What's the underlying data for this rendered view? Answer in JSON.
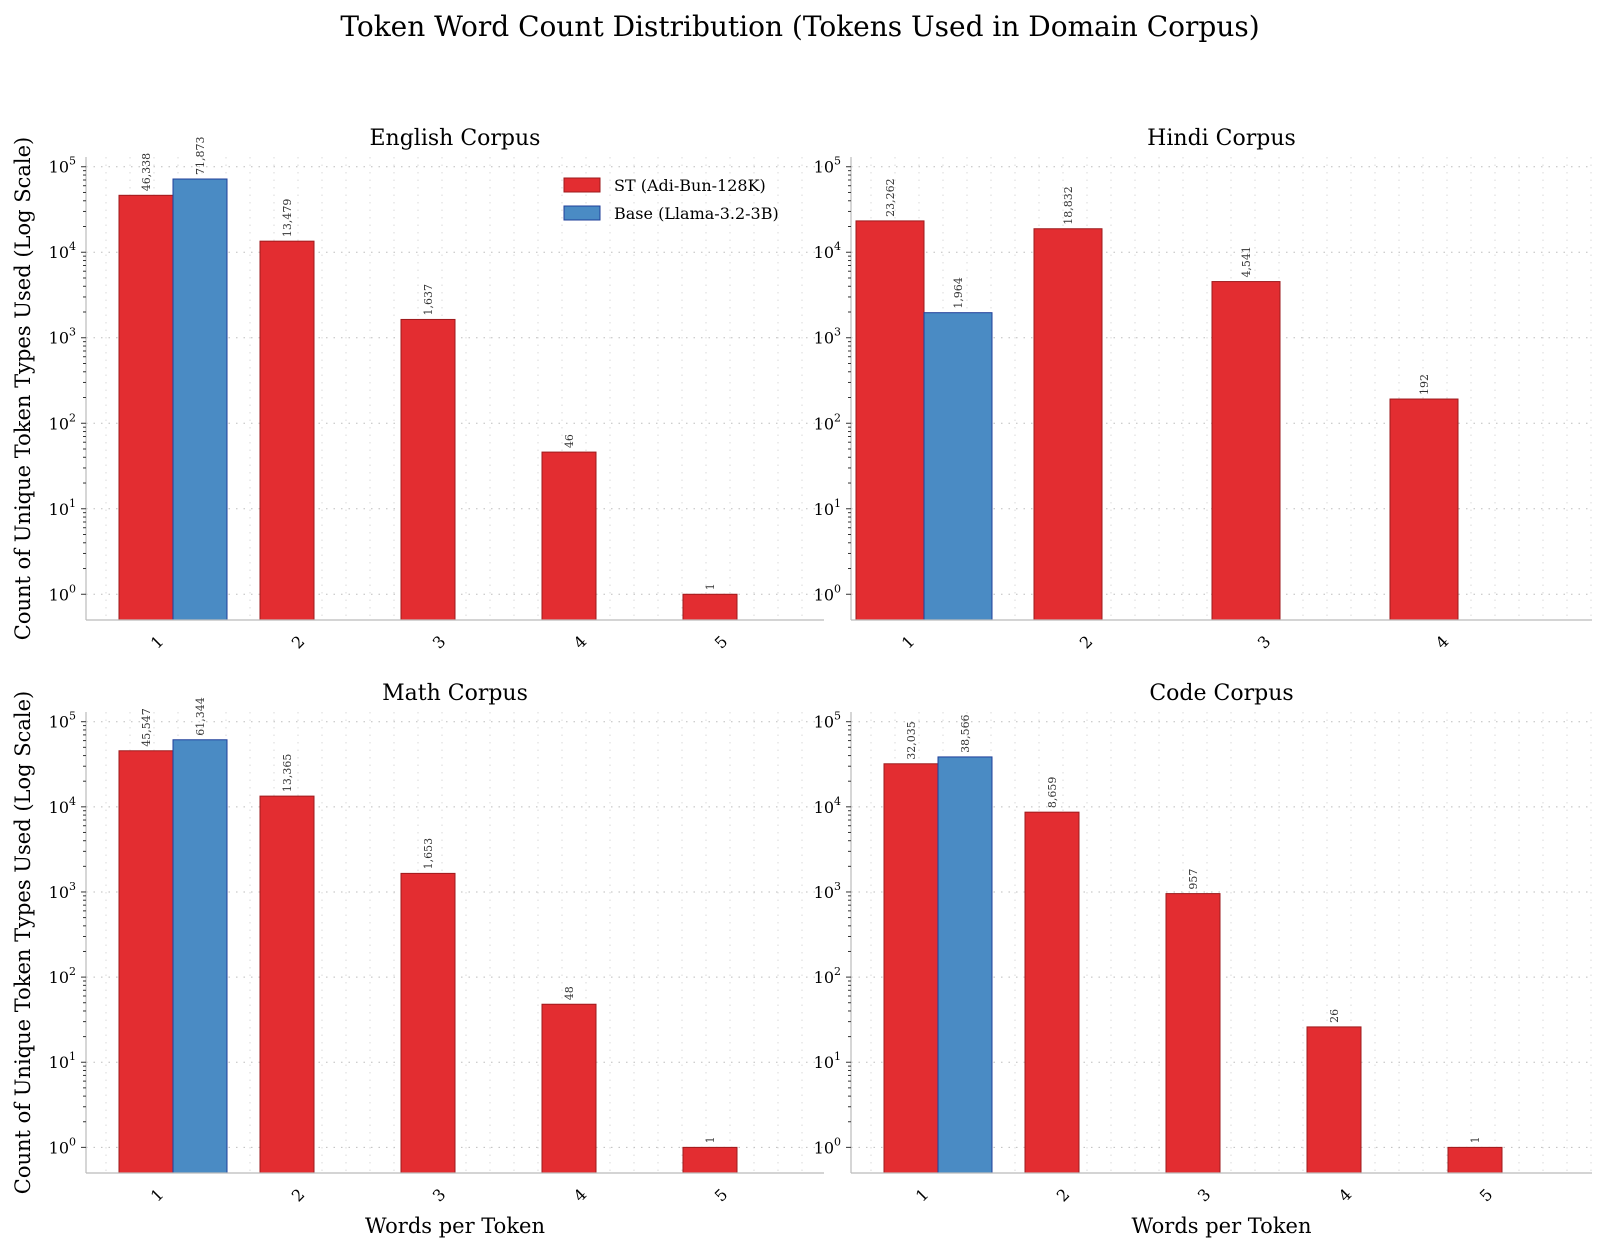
{
  "figure": {
    "title": "Token Word Count Distribution (Tokens Used in Domain Corpus)"
  },
  "colors": {
    "st": "#e32d31",
    "base": "#4a8bc4",
    "st_edge": "#9e1a1c",
    "base_edge": "#1f3f9a"
  },
  "legend": {
    "placement": "top-right of first panel",
    "st": "ST (Adi-Bun-128K)",
    "base": "Base (Llama-3.2-3B)"
  },
  "chart_data": [
    {
      "type": "bar",
      "title": "English Corpus",
      "xlabel": "",
      "ylabel": "Count of Unique Token Types Used (Log Scale)",
      "yscale": "log",
      "ylim": [
        0.5,
        130000
      ],
      "categories": [
        "1",
        "2",
        "3",
        "4",
        "5"
      ],
      "series": [
        {
          "name": "ST (Adi-Bun-128K)",
          "values": [
            46338,
            13479,
            1637,
            46,
            1
          ],
          "labels": [
            "46,338",
            "13,479",
            "1,637",
            "46",
            "1"
          ]
        },
        {
          "name": "Base (Llama-3.2-3B)",
          "values": [
            71873,
            null,
            null,
            null,
            null
          ],
          "labels": [
            "71,873",
            "",
            "",
            "",
            ""
          ]
        }
      ]
    },
    {
      "type": "bar",
      "title": "Hindi Corpus",
      "xlabel": "",
      "ylabel": "",
      "yscale": "log",
      "ylim": [
        0.5,
        130000
      ],
      "categories": [
        "1",
        "2",
        "3",
        "4"
      ],
      "series": [
        {
          "name": "ST (Adi-Bun-128K)",
          "values": [
            23262,
            18832,
            4541,
            192
          ],
          "labels": [
            "23,262",
            "18,832",
            "4,541",
            "192"
          ]
        },
        {
          "name": "Base (Llama-3.2-3B)",
          "values": [
            1964,
            null,
            null,
            null
          ],
          "labels": [
            "1,964",
            "",
            "",
            ""
          ]
        }
      ]
    },
    {
      "type": "bar",
      "title": "Math Corpus",
      "xlabel": "Words per Token",
      "ylabel": "Count of Unique Token Types Used (Log Scale)",
      "yscale": "log",
      "ylim": [
        0.5,
        130000
      ],
      "categories": [
        "1",
        "2",
        "3",
        "4",
        "5"
      ],
      "series": [
        {
          "name": "ST (Adi-Bun-128K)",
          "values": [
            45547,
            13365,
            1653,
            48,
            1
          ],
          "labels": [
            "45,547",
            "13,365",
            "1,653",
            "48",
            "1"
          ]
        },
        {
          "name": "Base (Llama-3.2-3B)",
          "values": [
            61344,
            null,
            null,
            null,
            null
          ],
          "labels": [
            "61,344",
            "",
            "",
            "",
            ""
          ]
        }
      ]
    },
    {
      "type": "bar",
      "title": "Code Corpus",
      "xlabel": "Words per Token",
      "ylabel": "",
      "yscale": "log",
      "ylim": [
        0.5,
        130000
      ],
      "categories": [
        "1",
        "2",
        "3",
        "4",
        "5"
      ],
      "series": [
        {
          "name": "ST (Adi-Bun-128K)",
          "values": [
            32035,
            8659,
            957,
            26,
            1
          ],
          "labels": [
            "32,035",
            "8,659",
            "957",
            "26",
            "1"
          ]
        },
        {
          "name": "Base (Llama-3.2-3B)",
          "values": [
            38566,
            null,
            null,
            null,
            null
          ],
          "labels": [
            "38,566",
            "",
            "",
            "",
            ""
          ]
        }
      ]
    }
  ]
}
